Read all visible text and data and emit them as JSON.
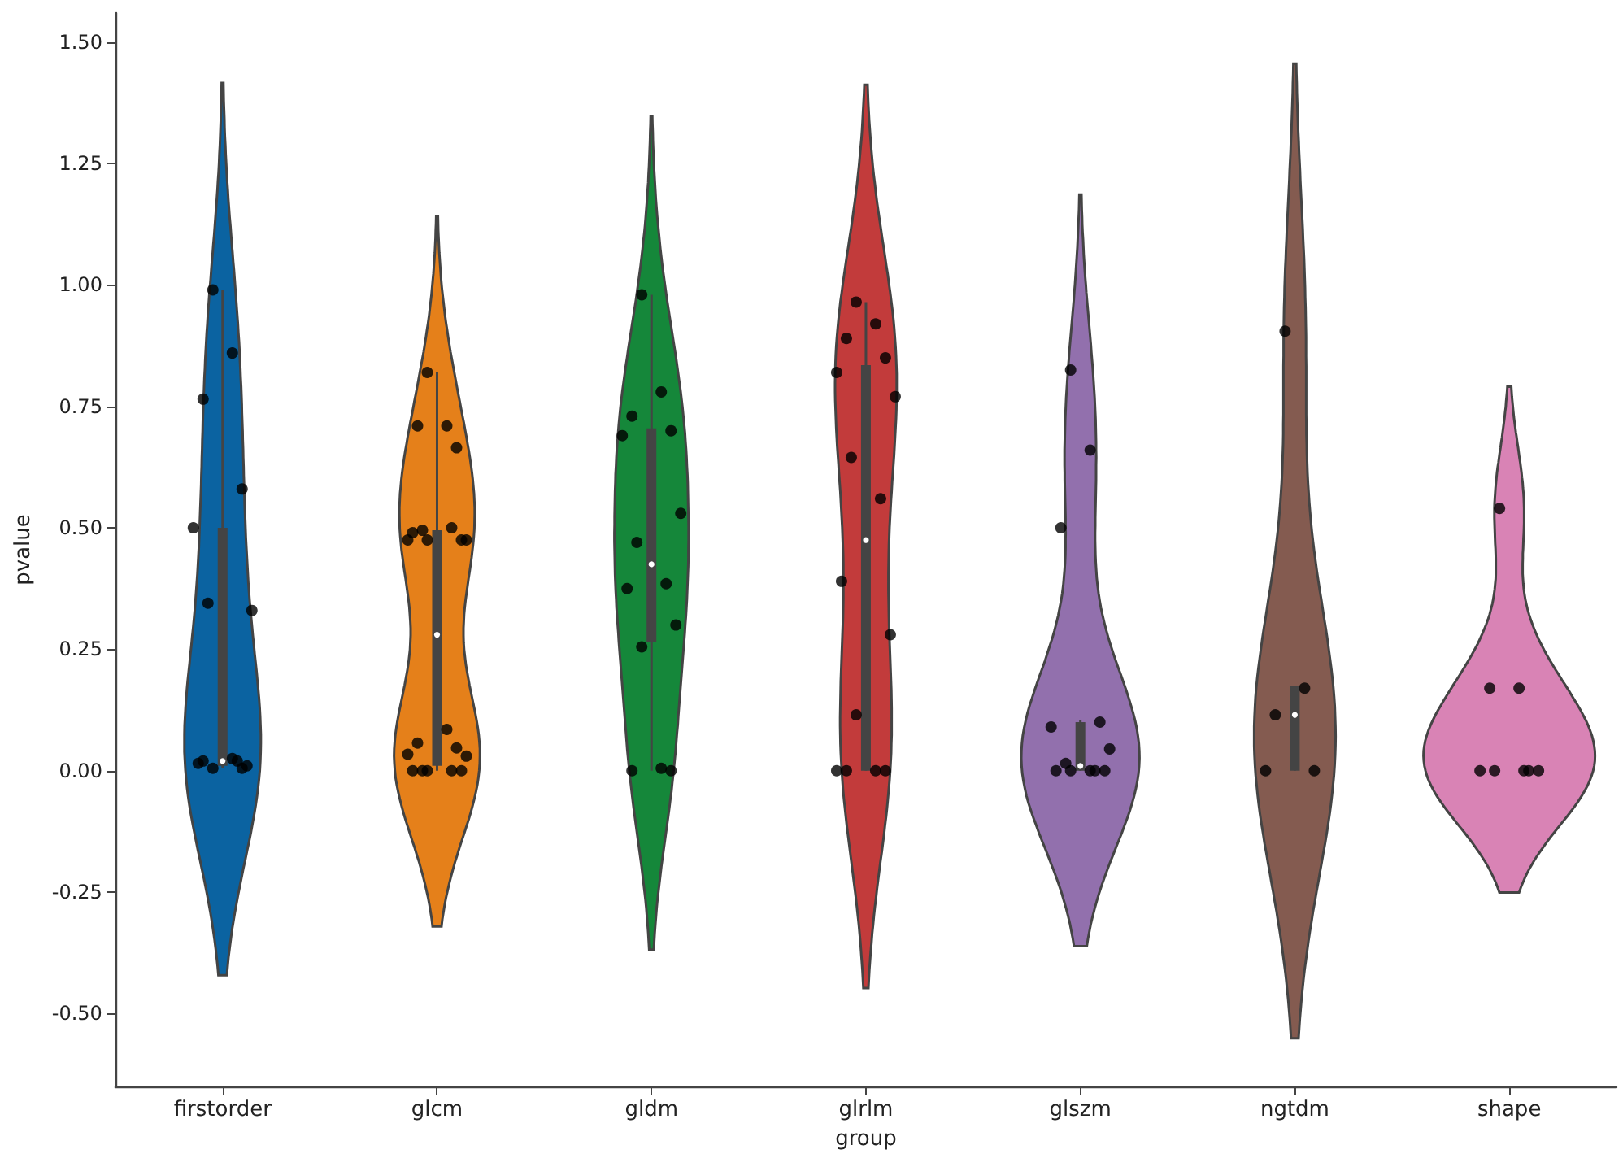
{
  "chart_data": {
    "type": "box",
    "xlabel": "group",
    "ylabel": "pvalue",
    "categories": [
      "firstorder",
      "glcm",
      "gldm",
      "glrlm",
      "glszm",
      "ngtdm",
      "shape"
    ],
    "colors": [
      "#0b63a1",
      "#e5801a",
      "#15873a",
      "#c23b3b",
      "#9270ad",
      "#845b50",
      "#d983b5"
    ],
    "ylim": [
      -0.65,
      1.56
    ],
    "yticks": [
      {
        "value": -0.5,
        "label": "-0.50"
      },
      {
        "value": -0.25,
        "label": "-0.25"
      },
      {
        "value": 0,
        "label": "0.00"
      },
      {
        "value": 0.25,
        "label": "0.25"
      },
      {
        "value": 0.5,
        "label": "0.50"
      },
      {
        "value": 0.75,
        "label": "0.75"
      },
      {
        "value": 1,
        "label": "1.00"
      },
      {
        "value": 1.25,
        "label": "1.25"
      },
      {
        "value": 1.5,
        "label": "1.50"
      }
    ],
    "grid": false,
    "series": [
      {
        "type": "box",
        "color": "#444444",
        "boxes": [
          {
            "low": 0.005,
            "q1": 0.01,
            "median": 0.02,
            "q3": 0.5,
            "high": 0.99
          },
          {
            "low": 0,
            "q1": 0.01,
            "median": 0.28,
            "q3": 0.495,
            "high": 0.82
          },
          {
            "low": 0,
            "q1": 0.265,
            "median": 0.425,
            "q3": 0.705,
            "high": 0.98
          },
          {
            "low": 0,
            "q1": 0,
            "median": 0.475,
            "q3": 0.835,
            "high": 0.965
          },
          {
            "low": 0,
            "q1": 0,
            "median": 0.01,
            "q3": 0.1,
            "high": 0.105
          },
          {
            "low": 0,
            "q1": 0,
            "median": 0.115,
            "q3": 0.175,
            "high": 0.175
          },
          null
        ]
      },
      {
        "type": "scatter",
        "color": "#000000",
        "marker": "circle",
        "x": [
          "firstorder",
          "firstorder",
          "firstorder",
          "firstorder",
          "firstorder",
          "firstorder",
          "firstorder",
          "firstorder",
          "firstorder",
          "firstorder",
          "firstorder",
          "firstorder",
          "firstorder",
          "firstorder",
          "glcm",
          "glcm",
          "glcm",
          "glcm",
          "glcm",
          "glcm",
          "glcm",
          "glcm",
          "glcm",
          "glcm",
          "glcm",
          "glcm",
          "glcm",
          "glcm",
          "glcm",
          "glcm",
          "glcm",
          "glcm",
          "glcm",
          "glcm",
          "glcm",
          "gldm",
          "gldm",
          "gldm",
          "gldm",
          "gldm",
          "gldm",
          "gldm",
          "gldm",
          "gldm",
          "gldm",
          "gldm",
          "gldm",
          "gldm",
          "gldm",
          "glrlm",
          "glrlm",
          "glrlm",
          "glrlm",
          "glrlm",
          "glrlm",
          "glrlm",
          "glrlm",
          "glrlm",
          "glrlm",
          "glrlm",
          "glrlm",
          "glrlm",
          "glrlm",
          "glrlm",
          "glszm",
          "glszm",
          "glszm",
          "glszm",
          "glszm",
          "glszm",
          "glszm",
          "glszm",
          "glszm",
          "glszm",
          "glszm",
          "glszm",
          "ngtdm",
          "ngtdm",
          "ngtdm",
          "ngtdm",
          "ngtdm",
          "shape",
          "shape",
          "shape",
          "shape",
          "shape",
          "shape",
          "shape",
          "shape"
        ],
        "values": [
          0.99,
          0.86,
          0.765,
          0.58,
          0.5,
          0.33,
          0.345,
          0.02,
          0.015,
          0.01,
          0.005,
          0.025,
          0.02,
          0.005,
          0.82,
          0.71,
          0.71,
          0.665,
          0.475,
          0.475,
          0.495,
          0.5,
          0.49,
          0.475,
          0.475,
          0.085,
          0.057,
          0.047,
          0.034,
          0.03,
          0,
          0,
          0,
          0,
          0,
          0.98,
          0.78,
          0.73,
          0.7,
          0.69,
          0.53,
          0.47,
          0.385,
          0.375,
          0.3,
          0.255,
          0.005,
          0,
          0,
          0.965,
          0.92,
          0.89,
          0.85,
          0.82,
          0.77,
          0.645,
          0.56,
          0.39,
          0.28,
          0.115,
          0,
          0,
          0,
          0,
          0.825,
          0.66,
          0.5,
          0.1,
          0.09,
          0.045,
          0.015,
          0,
          0,
          0,
          0,
          0,
          0.905,
          0.17,
          0.115,
          0,
          0,
          0.54,
          0.17,
          0.17,
          0,
          0,
          0,
          0,
          0
        ]
      }
    ]
  }
}
